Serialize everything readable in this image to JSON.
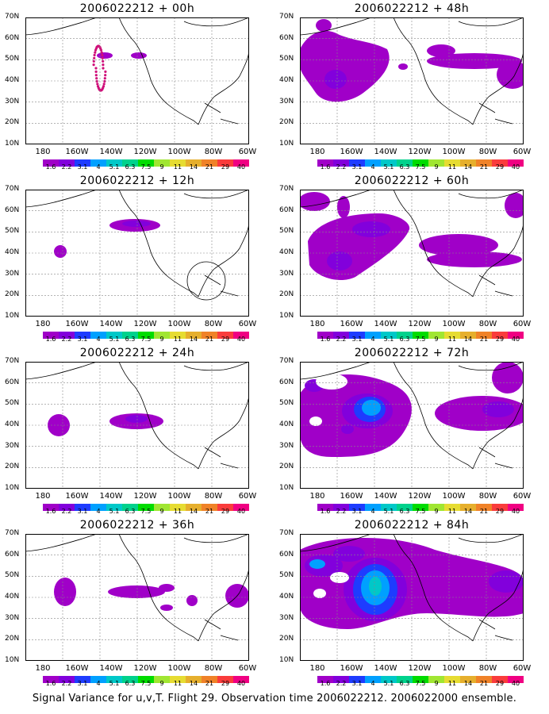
{
  "panels": [
    {
      "title": "2006022212 + 00h",
      "shapes": "p00"
    },
    {
      "title": "2006022212 + 48h",
      "shapes": "p48"
    },
    {
      "title": "2006022212 + 12h",
      "shapes": "p12"
    },
    {
      "title": "2006022212 + 60h",
      "shapes": "p60"
    },
    {
      "title": "2006022212 + 24h",
      "shapes": "p24"
    },
    {
      "title": "2006022212 + 72h",
      "shapes": "p72"
    },
    {
      "title": "2006022212 + 36h",
      "shapes": "p36"
    },
    {
      "title": "2006022212 + 84h",
      "shapes": "p84"
    }
  ],
  "axes": {
    "lat_labels": [
      "70N",
      "60N",
      "50N",
      "40N",
      "30N",
      "20N",
      "10N"
    ],
    "lon_labels": [
      "180",
      "160W",
      "140W",
      "120W",
      "100W",
      "80W",
      "60W"
    ]
  },
  "colorbar": {
    "labels": [
      "1.6",
      "2.2",
      "3.1",
      "4",
      "5.1",
      "6.3",
      "7.5",
      "9",
      "11",
      "14",
      "21",
      "29",
      "40"
    ],
    "colors": [
      "#a000c8",
      "#8200dc",
      "#1e3cff",
      "#00a0ff",
      "#00c8c8",
      "#00d28c",
      "#00dc00",
      "#a0e632",
      "#e6dc32",
      "#e6af2d",
      "#f08228",
      "#fa3c3c",
      "#f00082"
    ]
  },
  "caption": "Signal Variance for u,v,T. Flight 29. Observation time 2006022212. 2006022000 ensemble.",
  "colors": {
    "purple": "#a000c8",
    "violet": "#8200dc",
    "blue": "#1e3cff",
    "lightblue": "#00a0ff",
    "cyan": "#00c8c8",
    "track": "#d0107a"
  }
}
